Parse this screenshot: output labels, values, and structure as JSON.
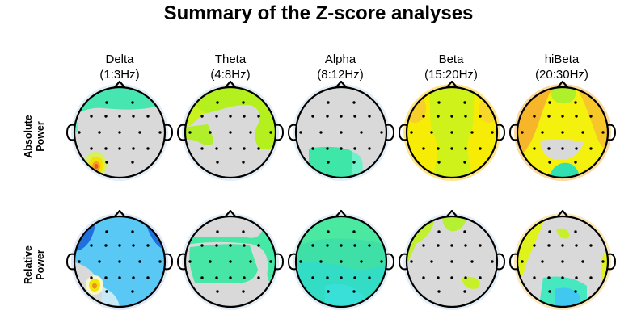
{
  "title": "Summary of the Z-score analyses",
  "columns": [
    {
      "name": "Delta",
      "range": "(1:3Hz)"
    },
    {
      "name": "Theta",
      "range": "(4:8Hz)"
    },
    {
      "name": "Alpha",
      "range": "(8:12Hz)"
    },
    {
      "name": "Beta",
      "range": "(15:20Hz)"
    },
    {
      "name": "hiBeta",
      "range": "(20:30Hz)"
    }
  ],
  "rows": [
    {
      "line1": "Absolute",
      "line2": "Power"
    },
    {
      "line1": "Relative",
      "line2": "Power"
    }
  ],
  "colors": {
    "neutral": "#d9d9d9",
    "outline": "#000000",
    "electrode": "#000000",
    "halo": "#dde8f3"
  }
}
